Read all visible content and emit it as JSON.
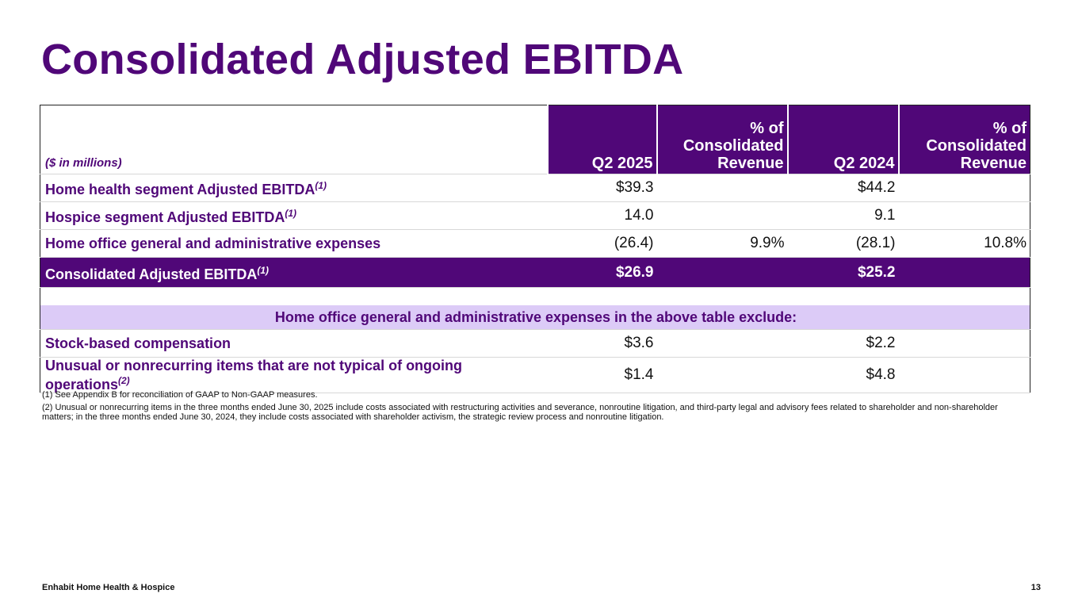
{
  "title": "Consolidated Adjusted EBITDA",
  "table": {
    "unit_label": "($ in millions)",
    "columns": [
      "Q2 2025",
      "% of Consolidated Revenue",
      "Q2 2024",
      "% of Consolidated Revenue"
    ],
    "rows": [
      {
        "label": "Home health segment Adjusted EBITDA",
        "note": "(1)",
        "cells": [
          "$39.3",
          null,
          "$44.2",
          null
        ]
      },
      {
        "label": "Hospice segment Adjusted EBITDA",
        "note": "(1)",
        "cells": [
          "14.0",
          null,
          "9.1",
          null
        ]
      },
      {
        "label": "Home office general and administrative expenses",
        "note": null,
        "cells": [
          "(26.4)",
          "9.9%",
          "(28.1)",
          "10.8%"
        ]
      },
      {
        "label": "Consolidated Adjusted EBITDA",
        "note": "(1)",
        "cells": [
          "$26.9",
          null,
          "$25.2",
          null
        ]
      }
    ],
    "section_header": "Home office general and administrative expenses in the above table exclude:",
    "detail_rows": [
      {
        "label": "Stock-based compensation",
        "note": null,
        "cells": [
          "$3.6",
          null,
          "$2.2",
          null
        ]
      },
      {
        "label": "Unusual or nonrecurring items that are not typical of ongoing operations",
        "note": "(2)",
        "cells": [
          "$1.4",
          null,
          "$4.8",
          null
        ]
      }
    ]
  },
  "footnotes": [
    "(1) See Appendix B for reconciliation of GAAP to Non-GAAP measures.",
    "(2) Unusual or nonrecurring items in the three months ended June 30, 2025 include costs associated with restructuring activities and severance, nonroutine litigation, and third-party legal and advisory fees related to shareholder and non-shareholder matters; in the three months ended June 30, 2024, they include costs associated with shareholder activism, the strategic review process and nonroutine litigation."
  ],
  "footer": {
    "company": "Enhabit Home Health & Hospice",
    "page": 13
  }
}
